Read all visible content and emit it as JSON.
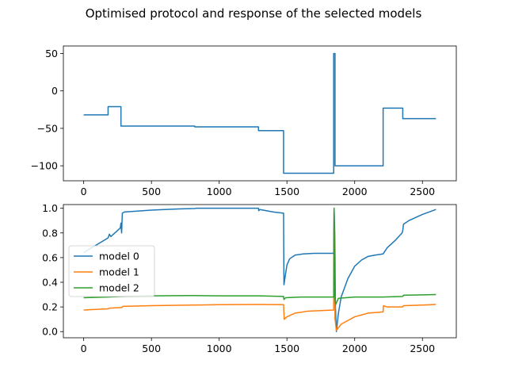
{
  "chart_data": {
    "title": "Optimised protocol and response of the selected models",
    "panels": [
      {
        "type": "line",
        "name": "protocol",
        "xlim": [
          -150,
          2750
        ],
        "ylim": [
          -120,
          60
        ],
        "xticks": [
          0,
          500,
          1000,
          1500,
          2000,
          2500
        ],
        "yticks": [
          50,
          0,
          -50,
          -100
        ],
        "ytick_labels": [
          "50",
          "0",
          "−50",
          "−100"
        ],
        "series": [
          {
            "name": "protocol",
            "color": "#1f77b4",
            "points": [
              [
                0,
                -32
              ],
              [
                180,
                -32
              ],
              [
                180,
                -21
              ],
              [
                275,
                -21
              ],
              [
                275,
                -47
              ],
              [
                820,
                -47
              ],
              [
                820,
                -48
              ],
              [
                1290,
                -48
              ],
              [
                1290,
                -53
              ],
              [
                1475,
                -53
              ],
              [
                1475,
                -110
              ],
              [
                1845,
                -110
              ],
              [
                1845,
                50
              ],
              [
                1855,
                50
              ],
              [
                1855,
                -100
              ],
              [
                2210,
                -100
              ],
              [
                2210,
                -23
              ],
              [
                2355,
                -23
              ],
              [
                2355,
                -37
              ],
              [
                2600,
                -37
              ]
            ]
          }
        ]
      },
      {
        "type": "line",
        "name": "model-response",
        "xlim": [
          -150,
          2750
        ],
        "ylim": [
          -0.05,
          1.03
        ],
        "xticks": [
          0,
          500,
          1000,
          1500,
          2000,
          2500
        ],
        "yticks": [
          0.0,
          0.2,
          0.4,
          0.6,
          0.8,
          1.0
        ],
        "ytick_labels": [
          "0.0",
          "0.2",
          "0.4",
          "0.6",
          "0.8",
          "1.0"
        ],
        "legend_position": "center-left",
        "series": [
          {
            "name": "model 0",
            "color": "#1f77b4",
            "points": [
              [
                0,
                0.64
              ],
              [
                180,
                0.76
              ],
              [
                190,
                0.79
              ],
              [
                200,
                0.77
              ],
              [
                270,
                0.84
              ],
              [
                275,
                0.88
              ],
              [
                280,
                0.8
              ],
              [
                285,
                0.96
              ],
              [
                300,
                0.97
              ],
              [
                500,
                0.985
              ],
              [
                700,
                0.995
              ],
              [
                820,
                0.998
              ],
              [
                830,
                1.0
              ],
              [
                1000,
                1.0
              ],
              [
                1290,
                1.0
              ],
              [
                1292,
                0.98
              ],
              [
                1300,
                0.99
              ],
              [
                1400,
                0.97
              ],
              [
                1475,
                0.96
              ],
              [
                1478,
                0.38
              ],
              [
                1490,
                0.47
              ],
              [
                1500,
                0.54
              ],
              [
                1520,
                0.59
              ],
              [
                1560,
                0.62
              ],
              [
                1620,
                0.63
              ],
              [
                1700,
                0.635
              ],
              [
                1845,
                0.635
              ],
              [
                1848,
                1.0
              ],
              [
                1853,
                0.8
              ],
              [
                1858,
                0.2
              ],
              [
                1865,
                0.0
              ],
              [
                1880,
                0.15
              ],
              [
                1900,
                0.28
              ],
              [
                1950,
                0.43
              ],
              [
                2000,
                0.53
              ],
              [
                2050,
                0.58
              ],
              [
                2100,
                0.61
              ],
              [
                2150,
                0.62
              ],
              [
                2210,
                0.63
              ],
              [
                2240,
                0.68
              ],
              [
                2300,
                0.74
              ],
              [
                2350,
                0.8
              ],
              [
                2355,
                0.82
              ],
              [
                2360,
                0.87
              ],
              [
                2400,
                0.9
              ],
              [
                2500,
                0.95
              ],
              [
                2600,
                0.99
              ]
            ]
          },
          {
            "name": "model 1",
            "color": "#ff7f0e",
            "points": [
              [
                0,
                0.175
              ],
              [
                180,
                0.185
              ],
              [
                190,
                0.19
              ],
              [
                280,
                0.195
              ],
              [
                290,
                0.205
              ],
              [
                500,
                0.21
              ],
              [
                800,
                0.215
              ],
              [
                1000,
                0.218
              ],
              [
                1290,
                0.22
              ],
              [
                1475,
                0.218
              ],
              [
                1480,
                0.1
              ],
              [
                1500,
                0.12
              ],
              [
                1560,
                0.15
              ],
              [
                1650,
                0.165
              ],
              [
                1845,
                0.175
              ],
              [
                1848,
                1.0
              ],
              [
                1855,
                0.1
              ],
              [
                1865,
                0.01
              ],
              [
                1900,
                0.06
              ],
              [
                2000,
                0.12
              ],
              [
                2100,
                0.15
              ],
              [
                2210,
                0.16
              ],
              [
                2212,
                0.21
              ],
              [
                2240,
                0.2
              ],
              [
                2355,
                0.2
              ],
              [
                2360,
                0.21
              ],
              [
                2500,
                0.215
              ],
              [
                2600,
                0.22
              ]
            ]
          },
          {
            "name": "model 2",
            "color": "#2ca02c",
            "points": [
              [
                0,
                0.275
              ],
              [
                180,
                0.28
              ],
              [
                280,
                0.285
              ],
              [
                500,
                0.29
              ],
              [
                800,
                0.292
              ],
              [
                1000,
                0.29
              ],
              [
                1290,
                0.29
              ],
              [
                1475,
                0.285
              ],
              [
                1478,
                0.26
              ],
              [
                1490,
                0.275
              ],
              [
                1600,
                0.28
              ],
              [
                1845,
                0.28
              ],
              [
                1848,
                1.0
              ],
              [
                1853,
                0.28
              ],
              [
                1860,
                0.22
              ],
              [
                1880,
                0.27
              ],
              [
                2000,
                0.28
              ],
              [
                2210,
                0.28
              ],
              [
                2355,
                0.285
              ],
              [
                2360,
                0.295
              ],
              [
                2600,
                0.3
              ]
            ]
          }
        ]
      }
    ]
  }
}
